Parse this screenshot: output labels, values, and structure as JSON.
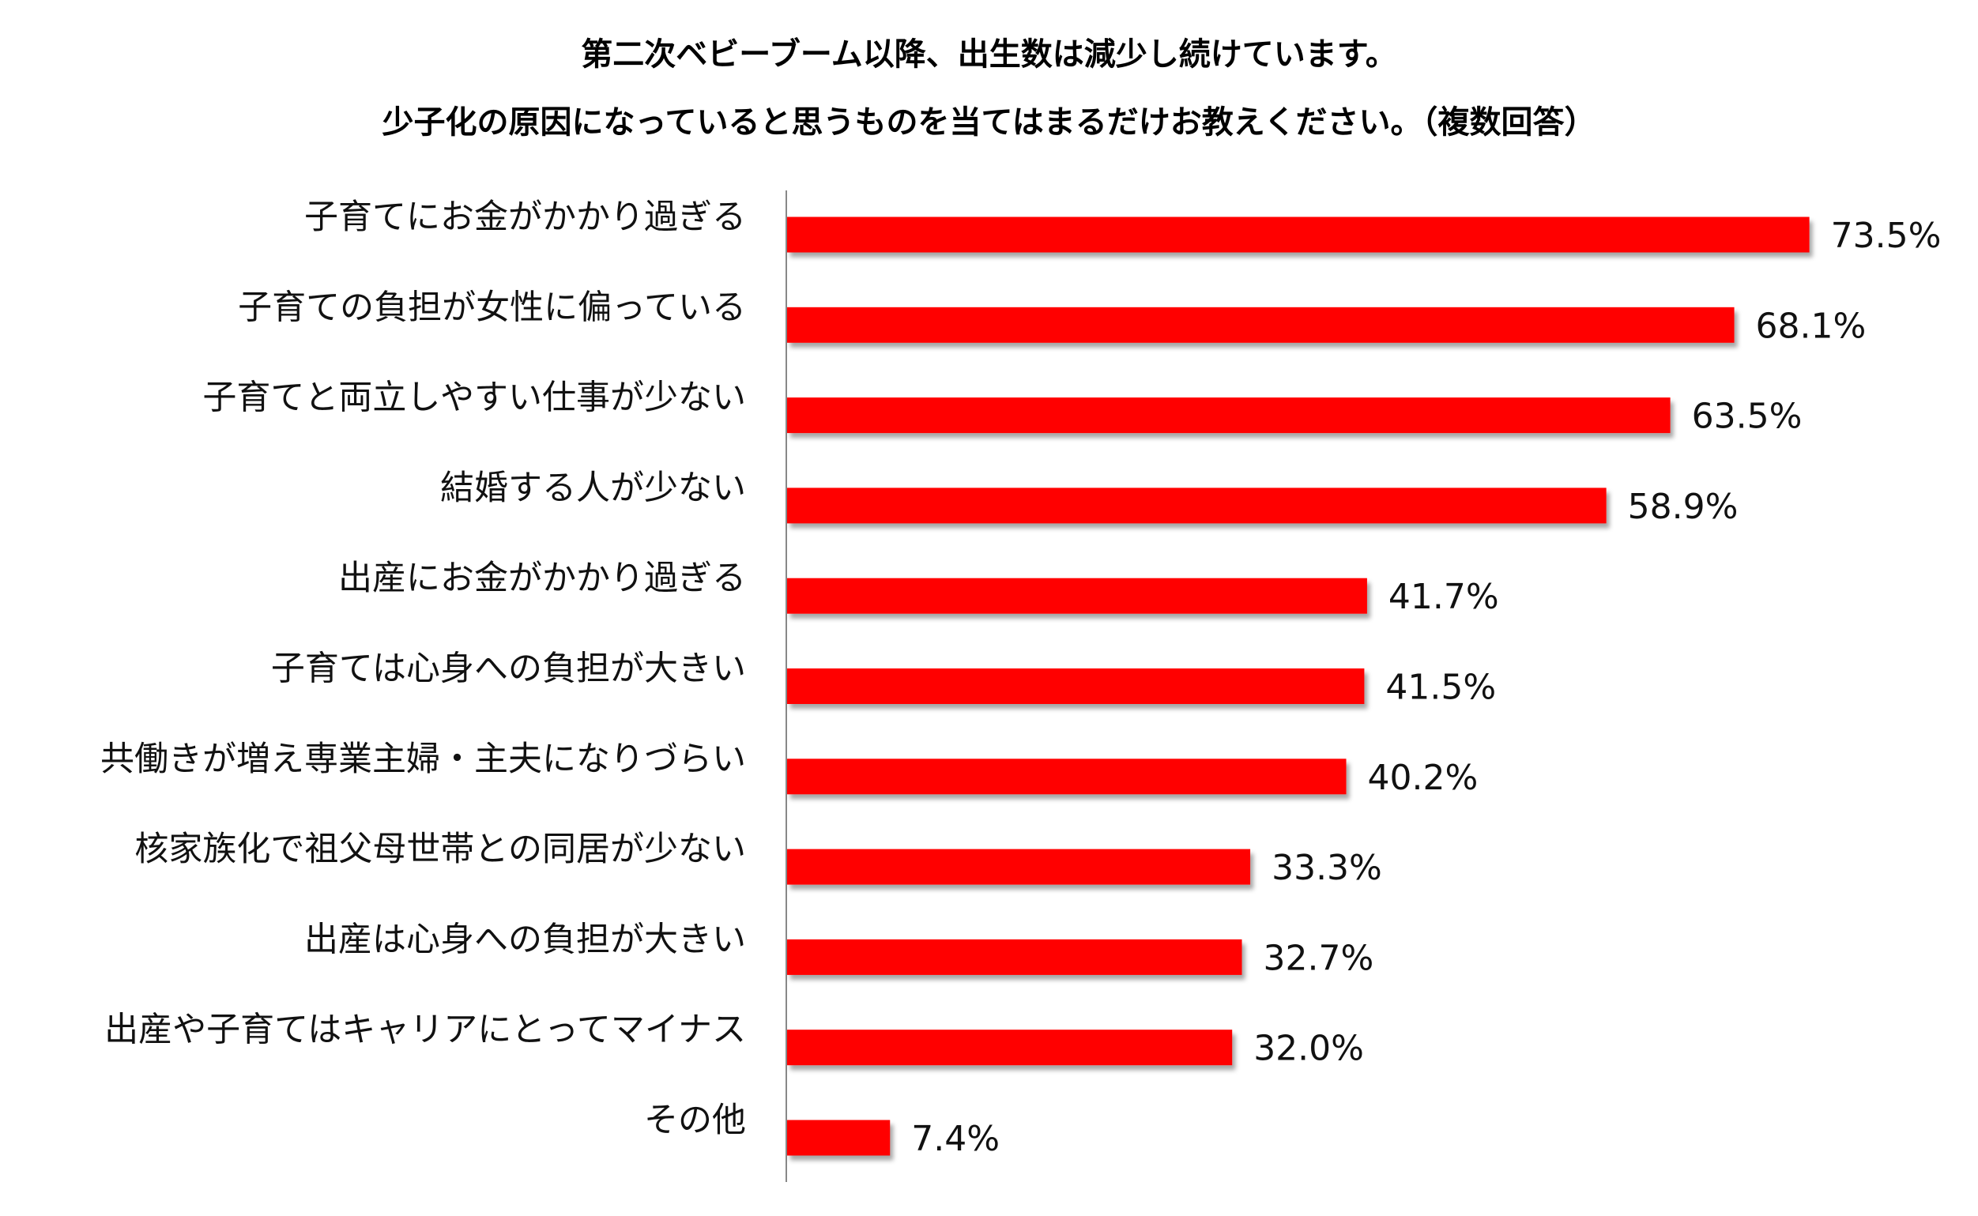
{
  "chart_data": {
    "type": "bar",
    "orientation": "horizontal",
    "title": "第二次ベビーブーム以降、出生数は減少し続けています。",
    "subtitle": "少子化の原因になっていると思うものを当てはまるだけお教えください。（複数回答）",
    "categories": [
      "子育てにお金がかかり過ぎる",
      "子育ての負担が女性に偏っている",
      "子育てと両立しやすい仕事が少ない",
      "結婚する人が少ない",
      "出産にお金がかかり過ぎる",
      "子育ては心身への負担が大きい",
      "共働きが増え専業主婦・主夫になりづらい",
      "核家族化で祖父母世帯との同居が少ない",
      "出産は心身への負担が大きい",
      "出産や子育てはキャリアにとってマイナス",
      "その他"
    ],
    "values": [
      73.5,
      68.1,
      63.5,
      58.9,
      41.7,
      41.5,
      40.2,
      33.3,
      32.7,
      32.0,
      7.4
    ],
    "value_labels": [
      "73.5%",
      "68.1%",
      "63.5%",
      "58.9%",
      "41.7%",
      "41.5%",
      "40.2%",
      "33.3%",
      "32.7%",
      "32.0%",
      "7.4%"
    ],
    "unit": "%",
    "xlim": [
      0,
      100
    ],
    "grid": false,
    "legend": "none",
    "bar_color": "#ff0000"
  }
}
